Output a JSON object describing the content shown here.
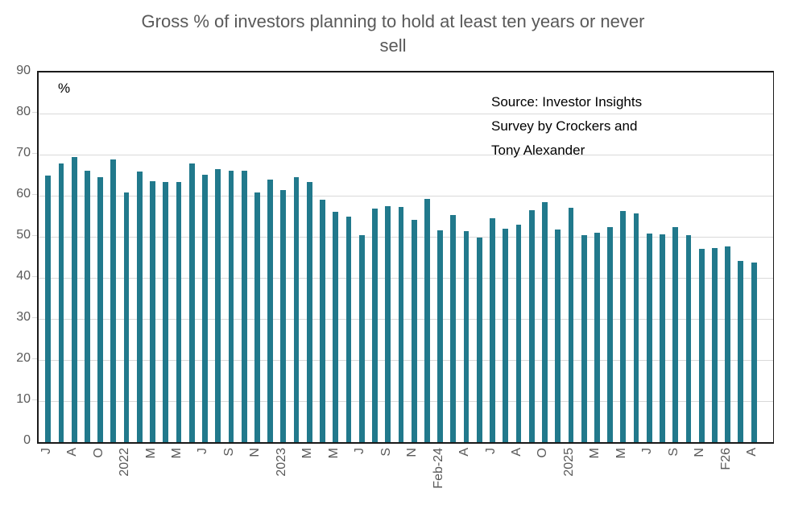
{
  "header": {
    "line1": "Gross % of investors planning to hold at least ten years or never",
    "line2": "sell"
  },
  "axis_unit_label": "%",
  "source_note": {
    "line1": "Source: Investor Insights",
    "line2": "Survey by Crockers and",
    "line3": "Tony Alexander"
  },
  "colors": {
    "bar": "#21798c",
    "title_text": "#595959",
    "axis_text": "#595959",
    "gridline": "#d9d9d9",
    "plot_border": "#1a1a1a",
    "source_text": "#000000"
  },
  "chart_data": {
    "type": "bar",
    "title": "Gross % of investors planning to hold at least ten years or never sell",
    "ylabel": "%",
    "ylim": [
      0,
      90
    ],
    "yticks": [
      0,
      10,
      20,
      30,
      40,
      50,
      60,
      70,
      80,
      90
    ],
    "grid": "horizontal-light",
    "legend": "none",
    "bar_color": "#21798c",
    "categories": [
      "J",
      "",
      "A",
      "",
      "O",
      "",
      "2022",
      "",
      "M",
      "",
      "M",
      "",
      "J",
      "",
      "S",
      "",
      "N",
      "",
      "2023",
      "",
      "M",
      "",
      "M",
      "",
      "J",
      "",
      "S",
      "",
      "N",
      "",
      "Feb-24",
      "",
      "A",
      "",
      "J",
      "",
      "A",
      "",
      "O",
      "",
      "2025",
      "",
      "M",
      "",
      "M",
      "",
      "J",
      "",
      "S",
      "",
      "N",
      "",
      "F26",
      "",
      "A"
    ],
    "values": [
      65.0,
      67.8,
      69.5,
      66.0,
      64.5,
      68.8,
      60.8,
      65.9,
      63.5,
      63.3,
      63.3,
      67.8,
      65.1,
      66.5,
      66.0,
      66.0,
      60.8,
      63.9,
      61.3,
      64.6,
      63.3,
      59.1,
      56.1,
      55.0,
      50.4,
      56.9,
      57.5,
      57.3,
      54.2,
      59.2,
      51.6,
      55.2,
      51.4,
      49.9,
      54.6,
      51.9,
      53.0,
      56.4,
      58.4,
      51.8,
      57.1,
      50.4,
      50.9,
      52.4,
      56.3,
      55.7,
      50.7,
      50.5,
      52.4,
      50.4,
      47.0,
      47.2,
      47.6,
      44.1,
      43.7
    ]
  }
}
